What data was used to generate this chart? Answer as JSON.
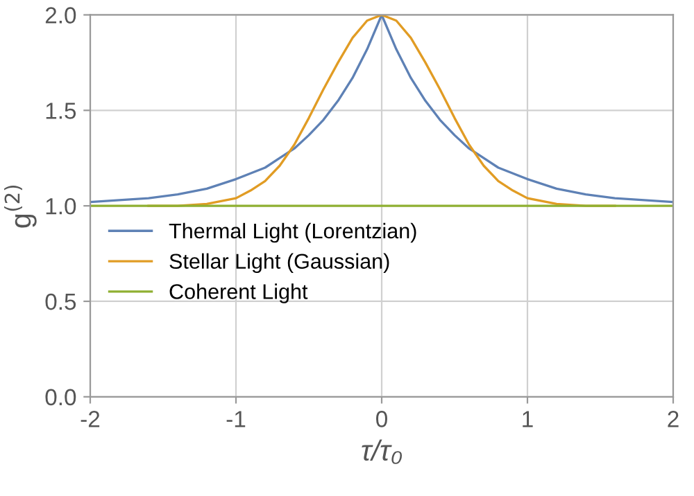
{
  "chart_data": {
    "type": "line",
    "xlabel": "τ/τ₀",
    "ylabel": "g$^{(2)}$",
    "xlim": [
      -2,
      2
    ],
    "ylim": [
      0,
      2
    ],
    "xticks": [
      -2,
      -1,
      0,
      1,
      2
    ],
    "yticks": [
      {
        "value": 0,
        "label": "0.0"
      },
      {
        "value": 0.5,
        "label": "0.5"
      },
      {
        "value": 1,
        "label": "1.0"
      },
      {
        "value": 1.5,
        "label": "1.5"
      },
      {
        "value": 2,
        "label": "2.0"
      }
    ],
    "grid": true,
    "legend": "left",
    "marker": "none",
    "line_style": "solid",
    "x": [
      -2,
      -1.8,
      -1.6,
      -1.4,
      -1.2,
      -1,
      -0.9,
      -0.8,
      -0.7,
      -0.6,
      -0.5,
      -0.4,
      -0.3,
      -0.2,
      -0.1,
      0,
      0.1,
      0.2,
      0.3,
      0.4,
      0.5,
      0.6,
      0.7,
      0.8,
      0.9,
      1,
      1.2,
      1.4,
      1.6,
      1.8,
      2
    ],
    "series": [
      {
        "name": "Thermal Light (Lorentzian)",
        "color": "#5e81b5",
        "values": [
          1.02,
          1.03,
          1.04,
          1.06,
          1.09,
          1.14,
          1.17,
          1.2,
          1.25,
          1.3,
          1.37,
          1.45,
          1.55,
          1.67,
          1.82,
          2,
          1.82,
          1.67,
          1.55,
          1.45,
          1.37,
          1.3,
          1.25,
          1.2,
          1.17,
          1.14,
          1.09,
          1.06,
          1.04,
          1.03,
          1.02
        ]
      },
      {
        "name": "Stellar Light (Gaussian)",
        "color": "#e19c24",
        "values": [
          null,
          null,
          1,
          1,
          1.01,
          1.04,
          1.08,
          1.13,
          1.21,
          1.32,
          1.46,
          1.61,
          1.75,
          1.88,
          1.97,
          2,
          1.97,
          1.88,
          1.75,
          1.61,
          1.46,
          1.32,
          1.21,
          1.13,
          1.08,
          1.04,
          1.01,
          1,
          1,
          null,
          null
        ]
      },
      {
        "name": "Coherent Light",
        "color": "#8fb032",
        "x": [
          -2,
          2
        ],
        "values": [
          1,
          1
        ]
      }
    ]
  }
}
